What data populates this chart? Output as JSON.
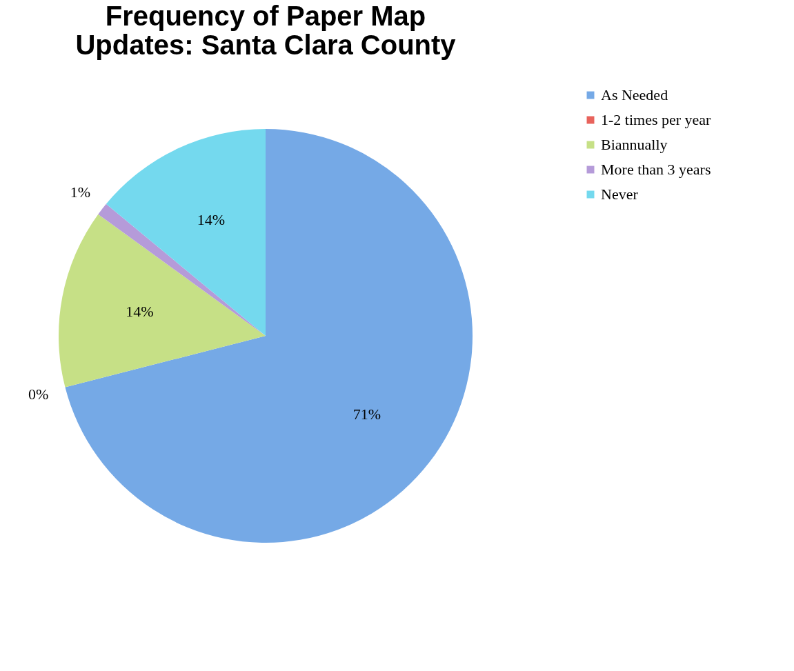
{
  "chart_data": {
    "type": "pie",
    "title": "Frequency of Paper Map Updates: Santa Clara County",
    "categories": [
      "As Needed",
      "1-2 times per year",
      "Biannually",
      "More than 3 years",
      "Never"
    ],
    "values": [
      71,
      0,
      14,
      1,
      14
    ],
    "value_labels": [
      "71%",
      "0%",
      "14%",
      "1%",
      "14%"
    ],
    "colors": [
      "#75a9e6",
      "#e8635c",
      "#c6e086",
      "#b59bd9",
      "#74d9ee"
    ],
    "legend": "right"
  }
}
